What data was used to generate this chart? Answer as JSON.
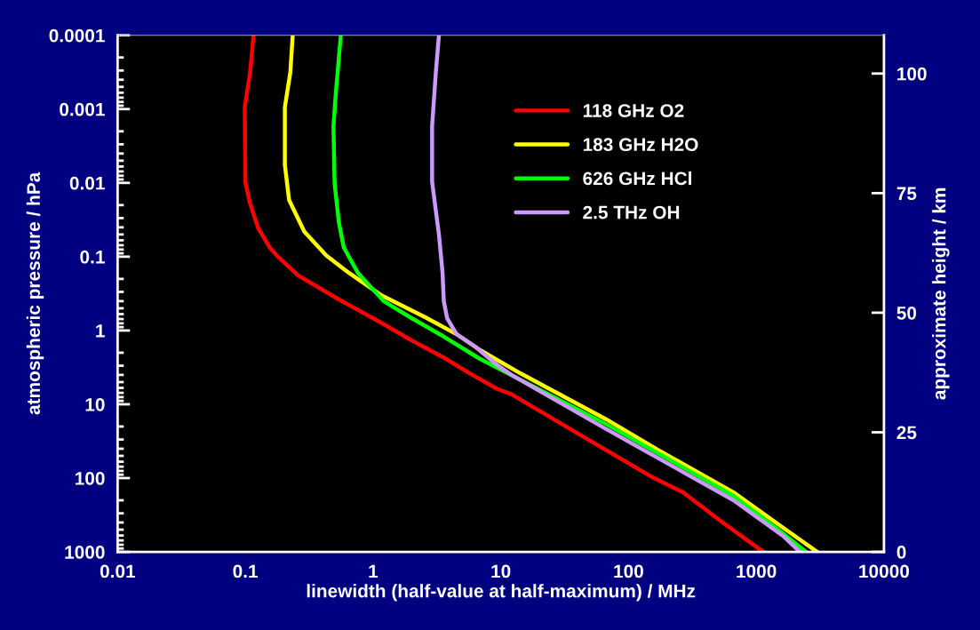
{
  "chart_data": {
    "type": "line",
    "xlabel": "linewidth (half-value at half-maximum) / MHz",
    "ylabel": "atmospheric pressure / hPa",
    "y2label": "approximate height / km",
    "log": "xy",
    "xlim": [
      0.01,
      10000
    ],
    "xticks": [
      0.01,
      0.1,
      1,
      10,
      100,
      1000,
      10000
    ],
    "ylim": [
      1000,
      0.0001
    ],
    "yticks": [
      0.0001,
      0.001,
      0.01,
      0.1,
      1,
      10,
      100,
      1000
    ],
    "y2lim": [
      0,
      108
    ],
    "y2ticks": [
      0,
      25,
      50,
      75,
      100
    ],
    "legend": "top right",
    "grid": false,
    "line_style": "solid",
    "marker": "none",
    "series": [
      {
        "name": "118 GHz O2",
        "color": "#ff0000",
        "x": [
          0.116,
          0.109,
          0.099,
          0.1,
          0.109,
          0.126,
          0.155,
          0.18,
          0.26,
          0.54,
          0.72,
          1.15,
          2.0,
          3.58,
          5.7,
          9.4,
          12.1,
          45,
          150,
          267,
          523,
          1040,
          1150
        ],
        "values": [
          0.0001,
          0.00032,
          0.00094,
          0.0097,
          0.019,
          0.041,
          0.075,
          0.1,
          0.18,
          0.38,
          0.5,
          0.78,
          1.36,
          2.33,
          3.8,
          6.2,
          7.3,
          28,
          95,
          156,
          378,
          895,
          1000
        ]
      },
      {
        "name": "183 GHz H2O",
        "color": "#ffff00",
        "x": [
          0.235,
          0.225,
          0.204,
          0.204,
          0.22,
          0.29,
          0.43,
          0.645,
          1.15,
          2.56,
          4.5,
          6.8,
          14.2,
          67,
          168,
          664,
          1740,
          3000
        ],
        "values": [
          0.0001,
          0.00032,
          0.00094,
          0.0057,
          0.017,
          0.046,
          0.096,
          0.165,
          0.33,
          0.66,
          1.12,
          1.82,
          3.8,
          16,
          41,
          156,
          513,
          1000
        ]
      },
      {
        "name": "626 GHz HCl",
        "color": "#00ff00",
        "x": [
          0.559,
          0.51,
          0.49,
          0.5,
          0.54,
          0.59,
          0.76,
          1.21,
          2.0,
          3.58,
          6.8,
          67,
          664,
          1650,
          2450
        ],
        "values": [
          0.0001,
          0.00064,
          0.0017,
          0.0102,
          0.034,
          0.075,
          0.165,
          0.4,
          0.68,
          1.21,
          2.4,
          18.6,
          174,
          575,
          1000
        ]
      },
      {
        "name": "2.5 THz OH",
        "color": "#cc99ff",
        "x": [
          3.28,
          3.1,
          2.9,
          2.9,
          3.28,
          3.5,
          3.58,
          3.8,
          4.5,
          6.3,
          9.4,
          12.1,
          67,
          664,
          1650,
          2200
        ],
        "values": [
          0.0001,
          0.00032,
          0.0017,
          0.0097,
          0.05,
          0.165,
          0.4,
          0.68,
          1.12,
          1.65,
          2.95,
          4.0,
          21.7,
          200,
          624,
          1000
        ]
      }
    ]
  }
}
